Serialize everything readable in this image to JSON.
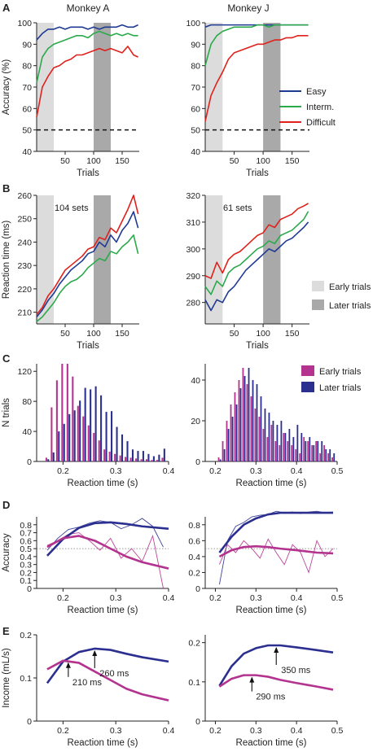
{
  "figure": {
    "panel_letters": [
      "A",
      "B",
      "C",
      "D",
      "E"
    ],
    "column_titles": [
      "Monkey A",
      "Monkey J"
    ]
  },
  "colors": {
    "easy": "#1f3a93",
    "interm": "#2aaa4a",
    "difficult": "#e0211c",
    "early": "#b3338f",
    "later": "#2b2f8f",
    "shade_early": "#dcdcdc",
    "shade_later": "#a9a9a9"
  },
  "legends": {
    "A": [
      "Easy",
      "Interm.",
      "Difficult"
    ],
    "B": [
      "Early trials",
      "Later trials"
    ],
    "C": [
      "Early trials",
      "Later trials"
    ]
  },
  "chart_data": [
    {
      "id": "A-left",
      "type": "line",
      "panel": "A",
      "column_title": "Monkey A",
      "xlabel": "Trials",
      "ylabel": "Accuracy (%)",
      "xlim": [
        0,
        180
      ],
      "ylim": [
        40,
        100
      ],
      "xticks": [
        50,
        100,
        150
      ],
      "yticks": [
        40,
        50,
        60,
        70,
        80,
        90,
        100
      ],
      "bands": [
        {
          "name": "Early trials",
          "x": [
            0,
            30
          ]
        },
        {
          "name": "Later trials",
          "x": [
            100,
            130
          ]
        }
      ],
      "hline": 50,
      "x": [
        0,
        10,
        20,
        30,
        40,
        50,
        60,
        70,
        80,
        90,
        100,
        110,
        120,
        130,
        140,
        150,
        160,
        170,
        178
      ],
      "series": [
        {
          "name": "Easy",
          "values": [
            92,
            95,
            97,
            97,
            98,
            97,
            98,
            98,
            98,
            97,
            98,
            97,
            98,
            98,
            98,
            99,
            98,
            98,
            99
          ]
        },
        {
          "name": "Interm.",
          "values": [
            72,
            84,
            88,
            90,
            91,
            92,
            93,
            94,
            94,
            93,
            95,
            96,
            95,
            94,
            95,
            94,
            95,
            94,
            94
          ]
        },
        {
          "name": "Difficult",
          "values": [
            56,
            70,
            75,
            79,
            80,
            82,
            83,
            85,
            85,
            86,
            87,
            88,
            87,
            88,
            87,
            86,
            89,
            85,
            84
          ]
        }
      ]
    },
    {
      "id": "A-right",
      "type": "line",
      "panel": "A",
      "column_title": "Monkey J",
      "xlabel": "Trials",
      "ylabel": "",
      "xlim": [
        0,
        180
      ],
      "ylim": [
        40,
        100
      ],
      "xticks": [
        50,
        100,
        150
      ],
      "yticks": [
        40,
        50,
        60,
        70,
        80,
        90,
        100
      ],
      "bands": [
        {
          "name": "Early trials",
          "x": [
            0,
            30
          ]
        },
        {
          "name": "Later trials",
          "x": [
            100,
            130
          ]
        }
      ],
      "hline": 50,
      "x": [
        0,
        10,
        20,
        30,
        40,
        50,
        60,
        70,
        80,
        90,
        100,
        110,
        120,
        130,
        140,
        150,
        160,
        170,
        178
      ],
      "series": [
        {
          "name": "Easy",
          "values": [
            98,
            99,
            99,
            99,
            99,
            99,
            99,
            99,
            99,
            99,
            99,
            99,
            99,
            99,
            99,
            99,
            99,
            99,
            99
          ]
        },
        {
          "name": "Interm.",
          "values": [
            80,
            90,
            94,
            96,
            97,
            98,
            98,
            98,
            98,
            99,
            99,
            98,
            99,
            99,
            99,
            99,
            99,
            99,
            99
          ]
        },
        {
          "name": "Difficult",
          "values": [
            54,
            66,
            72,
            77,
            83,
            86,
            87,
            88,
            89,
            90,
            90,
            91,
            92,
            92,
            93,
            93,
            94,
            94,
            94
          ]
        }
      ]
    },
    {
      "id": "B-left",
      "type": "line",
      "panel": "B",
      "xlabel": "Trials",
      "ylabel": "Reaction time (ms)",
      "xlim": [
        0,
        180
      ],
      "ylim": [
        205,
        260
      ],
      "xticks": [
        50,
        100,
        150
      ],
      "yticks": [
        210,
        220,
        230,
        240,
        250,
        260
      ],
      "annotation": "104 sets",
      "bands": [
        {
          "name": "Early trials",
          "x": [
            0,
            30
          ]
        },
        {
          "name": "Later trials",
          "x": [
            100,
            130
          ]
        }
      ],
      "x": [
        0,
        10,
        20,
        30,
        40,
        50,
        60,
        70,
        80,
        90,
        100,
        110,
        120,
        130,
        140,
        150,
        160,
        170,
        178
      ],
      "series": [
        {
          "name": "Easy",
          "values": [
            208,
            211,
            215,
            218,
            222,
            225,
            228,
            230,
            232,
            235,
            236,
            240,
            238,
            243,
            240,
            245,
            248,
            253,
            246
          ]
        },
        {
          "name": "Interm.",
          "values": [
            206,
            208,
            211,
            214,
            218,
            221,
            223,
            224,
            226,
            229,
            231,
            233,
            232,
            236,
            235,
            238,
            240,
            243,
            235
          ]
        },
        {
          "name": "Difficult",
          "values": [
            209,
            212,
            217,
            220,
            224,
            228,
            230,
            232,
            234,
            237,
            238,
            242,
            241,
            246,
            244,
            249,
            254,
            260,
            252
          ]
        }
      ]
    },
    {
      "id": "B-right",
      "type": "line",
      "panel": "B",
      "xlabel": "Trials",
      "ylabel": "",
      "xlim": [
        0,
        180
      ],
      "ylim": [
        272,
        320
      ],
      "xticks": [
        50,
        100,
        150
      ],
      "yticks": [
        280,
        290,
        300,
        310,
        320
      ],
      "annotation": "61 sets",
      "bands": [
        {
          "name": "Early trials",
          "x": [
            0,
            30
          ]
        },
        {
          "name": "Later trials",
          "x": [
            100,
            130
          ]
        }
      ],
      "x": [
        0,
        10,
        20,
        30,
        40,
        50,
        60,
        70,
        80,
        90,
        100,
        110,
        120,
        130,
        140,
        150,
        160,
        170,
        178
      ],
      "series": [
        {
          "name": "Easy",
          "values": [
            281,
            277,
            281,
            280,
            284,
            286,
            289,
            292,
            294,
            296,
            298,
            300,
            299,
            301,
            303,
            304,
            306,
            308,
            310
          ]
        },
        {
          "name": "Interm.",
          "values": [
            286,
            283,
            288,
            286,
            291,
            293,
            294,
            296,
            298,
            300,
            301,
            303,
            302,
            305,
            306,
            307,
            309,
            311,
            314
          ]
        },
        {
          "name": "Difficult",
          "values": [
            290,
            289,
            295,
            291,
            296,
            298,
            299,
            301,
            303,
            305,
            306,
            309,
            308,
            311,
            312,
            313,
            315,
            316,
            317
          ]
        }
      ]
    },
    {
      "id": "C-left",
      "type": "bar",
      "panel": "C",
      "xlabel": "Reaction time (s)",
      "ylabel": "N trials",
      "xlim": [
        0.15,
        0.4
      ],
      "ylim": [
        0,
        130
      ],
      "xticks": [
        0.2,
        0.3,
        0.4
      ],
      "yticks": [
        0,
        40,
        80,
        120
      ],
      "x": [
        0.17,
        0.18,
        0.19,
        0.2,
        0.21,
        0.22,
        0.23,
        0.24,
        0.25,
        0.26,
        0.27,
        0.28,
        0.29,
        0.3,
        0.31,
        0.32,
        0.33,
        0.34,
        0.35,
        0.36,
        0.37,
        0.38,
        0.39
      ],
      "series": [
        {
          "name": "Early trials",
          "values": [
            5,
            72,
            108,
            130,
            130,
            113,
            74,
            60,
            48,
            38,
            28,
            16,
            13,
            10,
            8,
            6,
            5,
            4,
            3,
            3,
            2,
            2,
            5
          ]
        },
        {
          "name": "Later trials",
          "values": [
            3,
            12,
            40,
            50,
            63,
            68,
            81,
            98,
            96,
            100,
            88,
            66,
            67,
            46,
            36,
            27,
            16,
            14,
            14,
            10,
            7,
            9,
            17
          ]
        }
      ]
    },
    {
      "id": "C-right",
      "type": "bar",
      "panel": "C",
      "xlabel": "Reaction time (s)",
      "ylabel": "",
      "xlim": [
        0.175,
        0.5
      ],
      "ylim": [
        0,
        48
      ],
      "xticks": [
        0.2,
        0.3,
        0.4,
        0.5
      ],
      "yticks": [
        0,
        20,
        40
      ],
      "x": [
        0.21,
        0.22,
        0.23,
        0.24,
        0.25,
        0.26,
        0.27,
        0.28,
        0.29,
        0.3,
        0.31,
        0.32,
        0.33,
        0.34,
        0.35,
        0.36,
        0.37,
        0.38,
        0.39,
        0.4,
        0.41,
        0.42,
        0.43,
        0.44,
        0.45,
        0.46,
        0.47,
        0.48,
        0.49
      ],
      "series": [
        {
          "name": "Early trials",
          "values": [
            2,
            10,
            20,
            28,
            34,
            40,
            46,
            38,
            32,
            26,
            22,
            16,
            12,
            18,
            10,
            8,
            14,
            10,
            8,
            6,
            4,
            12,
            10,
            8,
            10,
            4,
            8,
            4,
            2
          ]
        },
        {
          "name": "Later trials",
          "values": [
            1,
            6,
            16,
            22,
            28,
            36,
            42,
            46,
            40,
            38,
            32,
            26,
            24,
            20,
            18,
            20,
            14,
            16,
            12,
            18,
            14,
            10,
            12,
            8,
            10,
            10,
            6,
            6,
            4
          ]
        }
      ]
    },
    {
      "id": "D-left",
      "type": "line",
      "panel": "D",
      "xlabel": "Reaction time (s)",
      "ylabel": "Accuracy",
      "xlim": [
        0.15,
        0.4
      ],
      "ylim": [
        0,
        0.9
      ],
      "xticks": [
        0.2,
        0.3,
        0.4
      ],
      "yticks": [
        0,
        0.1,
        0.2,
        0.3,
        0.4,
        0.5,
        0.6,
        0.7,
        0.8
      ],
      "hline": 0.5,
      "x": [
        0.17,
        0.2,
        0.23,
        0.26,
        0.29,
        0.32,
        0.35,
        0.4
      ],
      "series": [
        {
          "name": "Later trials (fit)",
          "values": [
            0.41,
            0.62,
            0.76,
            0.82,
            0.83,
            0.81,
            0.78,
            0.75
          ]
        },
        {
          "name": "Early trials (fit)",
          "values": [
            0.52,
            0.63,
            0.66,
            0.6,
            0.5,
            0.4,
            0.33,
            0.25
          ]
        }
      ],
      "raw_x": [
        0.17,
        0.19,
        0.21,
        0.23,
        0.25,
        0.27,
        0.29,
        0.31,
        0.33,
        0.35,
        0.37,
        0.39
      ],
      "raw_series": [
        {
          "name": "Later trials (data)",
          "values": [
            0.48,
            0.63,
            0.74,
            0.77,
            0.82,
            0.85,
            0.83,
            0.75,
            0.8,
            0.88,
            0.78,
            0.52
          ]
        },
        {
          "name": "Early trials (data)",
          "values": [
            0.54,
            0.6,
            0.68,
            0.7,
            0.6,
            0.48,
            0.63,
            0.38,
            0.5,
            0.34,
            0.66,
            0.0
          ]
        }
      ]
    },
    {
      "id": "D-right",
      "type": "line",
      "panel": "D",
      "xlabel": "Reaction time (s)",
      "ylabel": "",
      "xlim": [
        0.175,
        0.5
      ],
      "ylim": [
        0,
        0.9
      ],
      "xticks": [
        0.2,
        0.3,
        0.4,
        0.5
      ],
      "yticks": [
        0,
        0.2,
        0.4,
        0.6,
        0.8
      ],
      "hline": 0.5,
      "x": [
        0.21,
        0.24,
        0.27,
        0.3,
        0.33,
        0.36,
        0.4,
        0.45,
        0.49
      ],
      "series": [
        {
          "name": "Later trials (fit)",
          "values": [
            0.45,
            0.65,
            0.8,
            0.88,
            0.93,
            0.95,
            0.95,
            0.95,
            0.95
          ]
        },
        {
          "name": "Early trials (fit)",
          "values": [
            0.4,
            0.48,
            0.52,
            0.53,
            0.52,
            0.5,
            0.48,
            0.45,
            0.44
          ]
        }
      ],
      "raw_x": [
        0.21,
        0.23,
        0.25,
        0.27,
        0.29,
        0.31,
        0.33,
        0.35,
        0.37,
        0.39,
        0.41,
        0.43,
        0.45,
        0.47,
        0.49
      ],
      "raw_series": [
        {
          "name": "Later trials (data)",
          "values": [
            0.05,
            0.6,
            0.78,
            0.83,
            0.9,
            0.92,
            0.93,
            0.97,
            0.95,
            0.96,
            0.94,
            0.96,
            0.97,
            0.95,
            0.96
          ]
        },
        {
          "name": "Early trials (data)",
          "values": [
            0.3,
            0.55,
            0.45,
            0.6,
            0.5,
            0.38,
            0.62,
            0.45,
            0.3,
            0.55,
            0.45,
            0.2,
            0.6,
            0.4,
            0.5
          ]
        }
      ]
    },
    {
      "id": "E-left",
      "type": "line",
      "panel": "E",
      "xlabel": "Reaction time (s)",
      "ylabel": "Income (mL/s)",
      "xlim": [
        0.15,
        0.4
      ],
      "ylim": [
        0,
        0.2
      ],
      "xticks": [
        0.2,
        0.3,
        0.4
      ],
      "yticks": [
        0,
        0.1,
        0.2
      ],
      "x": [
        0.17,
        0.2,
        0.23,
        0.26,
        0.29,
        0.32,
        0.35,
        0.4
      ],
      "series": [
        {
          "name": "Later trials",
          "values": [
            0.088,
            0.138,
            0.16,
            0.168,
            0.165,
            0.156,
            0.148,
            0.138
          ]
        },
        {
          "name": "Early trials",
          "values": [
            0.12,
            0.14,
            0.135,
            0.115,
            0.095,
            0.075,
            0.062,
            0.048
          ]
        }
      ],
      "annotations": [
        {
          "text": "260 ms",
          "x": 0.26,
          "y": 0.168
        },
        {
          "text": "210 ms",
          "x": 0.21,
          "y": 0.14
        }
      ]
    },
    {
      "id": "E-right",
      "type": "line",
      "panel": "E",
      "xlabel": "Reaction time (s)",
      "ylabel": "",
      "xlim": [
        0.175,
        0.5
      ],
      "ylim": [
        0,
        0.22
      ],
      "xticks": [
        0.2,
        0.3,
        0.4,
        0.5
      ],
      "yticks": [
        0,
        0.1,
        0.2
      ],
      "x": [
        0.21,
        0.24,
        0.27,
        0.3,
        0.33,
        0.36,
        0.4,
        0.45,
        0.49
      ],
      "series": [
        {
          "name": "Later trials",
          "values": [
            0.09,
            0.14,
            0.172,
            0.186,
            0.193,
            0.193,
            0.188,
            0.181,
            0.175
          ]
        },
        {
          "name": "Early trials",
          "values": [
            0.088,
            0.108,
            0.117,
            0.117,
            0.113,
            0.105,
            0.097,
            0.088,
            0.08
          ]
        }
      ],
      "annotations": [
        {
          "text": "350 ms",
          "x": 0.35,
          "y": 0.193
        },
        {
          "text": "290 ms",
          "x": 0.29,
          "y": 0.117
        }
      ]
    }
  ]
}
